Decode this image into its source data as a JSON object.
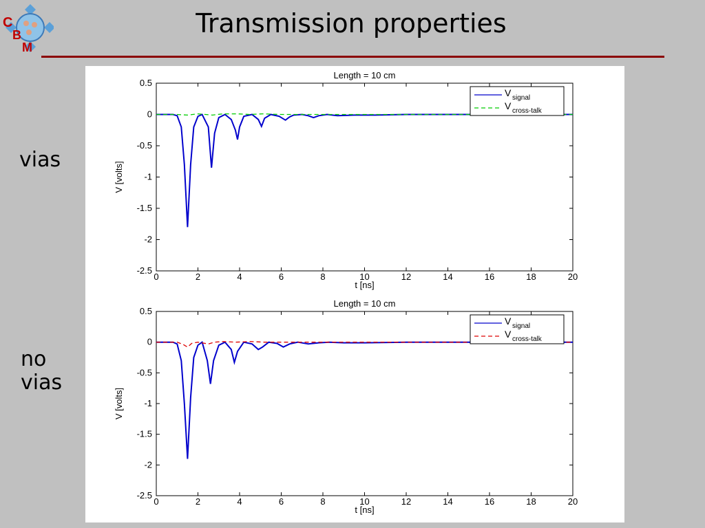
{
  "slide": {
    "title": "Transmission properties",
    "logo_letters": [
      "C",
      "B",
      "M"
    ],
    "labels": [
      "vias",
      "no\nvias"
    ]
  },
  "chart_data": [
    {
      "type": "line",
      "title": "Length = 10 cm",
      "xlabel": "t [ns]",
      "ylabel": "V [volts]",
      "xlim": [
        0,
        20
      ],
      "ylim": [
        -2.5,
        0.5
      ],
      "xticks": [
        0,
        2,
        4,
        6,
        8,
        10,
        12,
        14,
        16,
        18,
        20
      ],
      "yticks": [
        0.5,
        0,
        -0.5,
        -1,
        -1.5,
        -2,
        -2.5
      ],
      "ytick_labels": [
        "0.5",
        "0",
        "-0.5",
        "-1",
        "-1.5",
        "-2",
        "-2.5"
      ],
      "grid": false,
      "legend": "top-right",
      "series": [
        {
          "name": "V",
          "name_sub": "signal",
          "style": "solid",
          "color": "#0000cc",
          "x": [
            0,
            0.8,
            1.0,
            1.2,
            1.35,
            1.5,
            1.65,
            1.8,
            2.0,
            2.2,
            2.5,
            2.65,
            2.8,
            3.0,
            3.3,
            3.6,
            3.8,
            3.9,
            4.0,
            4.2,
            4.6,
            4.9,
            5.05,
            5.2,
            5.5,
            5.9,
            6.2,
            6.4,
            6.6,
            7.0,
            7.3,
            7.55,
            7.8,
            8.2,
            8.7,
            9.5,
            10.5,
            12,
            14,
            16,
            18,
            20
          ],
          "y": [
            0,
            0,
            -0.02,
            -0.2,
            -0.8,
            -1.8,
            -0.8,
            -0.2,
            -0.03,
            0,
            -0.2,
            -0.85,
            -0.3,
            -0.05,
            0,
            -0.08,
            -0.25,
            -0.4,
            -0.2,
            -0.03,
            0,
            -0.08,
            -0.19,
            -0.06,
            0,
            -0.03,
            -0.09,
            -0.04,
            -0.01,
            0,
            -0.02,
            -0.05,
            -0.02,
            0,
            -0.02,
            -0.01,
            -0.01,
            0,
            0,
            0,
            0,
            0
          ]
        },
        {
          "name": "V",
          "name_sub": "cross-talk",
          "style": "dashed",
          "color": "#00cc00",
          "x": [
            0,
            1.0,
            1.5,
            2.0,
            2.7,
            3.2,
            3.9,
            4.5,
            5.1,
            6.0,
            8,
            20
          ],
          "y": [
            0,
            0,
            -0.01,
            0.01,
            -0.01,
            0.01,
            0.01,
            0,
            0.01,
            0,
            0,
            0
          ]
        }
      ]
    },
    {
      "type": "line",
      "title": "Length = 10 cm",
      "xlabel": "t [ns]",
      "ylabel": "V [volts]",
      "xlim": [
        0,
        20
      ],
      "ylim": [
        -2.5,
        0.5
      ],
      "xticks": [
        0,
        2,
        4,
        6,
        8,
        10,
        12,
        14,
        16,
        18,
        20
      ],
      "yticks": [
        0.5,
        0,
        -0.5,
        -1,
        -1.5,
        -2,
        -2.5
      ],
      "ytick_labels": [
        "0.5",
        "0",
        "-0.5",
        "-1",
        "-1.5",
        "-2",
        "-2.5"
      ],
      "grid": false,
      "legend": "top-right",
      "series": [
        {
          "name": "V",
          "name_sub": "signal",
          "style": "solid",
          "color": "#0000cc",
          "x": [
            0,
            0.8,
            1.0,
            1.2,
            1.35,
            1.5,
            1.65,
            1.8,
            2.0,
            2.2,
            2.45,
            2.6,
            2.75,
            3.0,
            3.3,
            3.6,
            3.75,
            3.9,
            4.2,
            4.6,
            4.9,
            5.1,
            5.4,
            5.8,
            6.1,
            6.4,
            6.8,
            7.3,
            7.8,
            8.3,
            9.0,
            10,
            12,
            14,
            16,
            18,
            20
          ],
          "y": [
            0,
            0,
            -0.03,
            -0.3,
            -1.0,
            -1.9,
            -0.9,
            -0.25,
            -0.05,
            0,
            -0.3,
            -0.68,
            -0.3,
            -0.05,
            0,
            -0.12,
            -0.33,
            -0.15,
            0,
            -0.03,
            -0.12,
            -0.08,
            0,
            -0.02,
            -0.08,
            -0.03,
            0,
            -0.03,
            -0.01,
            0,
            -0.01,
            -0.01,
            0,
            0,
            0,
            0,
            0
          ]
        },
        {
          "name": "V",
          "name_sub": "cross-talk",
          "style": "dashed",
          "color": "#dd0000",
          "x": [
            0,
            1.0,
            1.3,
            1.5,
            1.7,
            2.0,
            2.5,
            2.8,
            3.2,
            3.8,
            4.5,
            5.2,
            6,
            7,
            20
          ],
          "y": [
            0,
            0,
            -0.04,
            -0.08,
            -0.02,
            0,
            -0.03,
            0,
            0.01,
            0,
            0.01,
            0,
            0,
            0,
            0
          ]
        }
      ]
    }
  ]
}
